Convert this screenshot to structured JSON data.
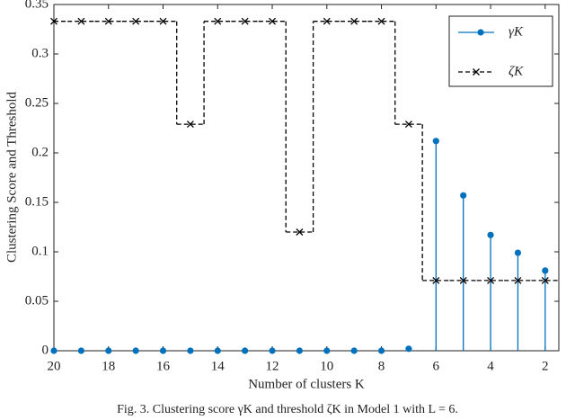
{
  "chart_data": {
    "type": "stem-step",
    "x_label": "Number of clusters K",
    "y_label": "Clustering Score and Threshold",
    "caption": "Fig. 3.   Clustering score γK and threshold ζK in Model 1 with L = 6.",
    "x": [
      20,
      19,
      18,
      17,
      16,
      15,
      14,
      13,
      12,
      11,
      10,
      9,
      8,
      7,
      6,
      5,
      4,
      3,
      2
    ],
    "xlim": [
      20,
      1.5
    ],
    "xticks": [
      20,
      18,
      16,
      14,
      12,
      10,
      8,
      6,
      4,
      2
    ],
    "ylim": [
      0,
      0.35
    ],
    "yticks": [
      0,
      0.05,
      0.1,
      0.15,
      0.2,
      0.25,
      0.3,
      0.35
    ],
    "legend": "upper right",
    "series": [
      {
        "name": "γK",
        "color": "#0072bd",
        "style": "stem",
        "values": [
          0,
          0,
          0,
          0,
          0,
          0,
          0,
          0,
          0,
          0,
          0,
          0,
          0,
          0.002,
          0.212,
          0.157,
          0.117,
          0.099,
          0.081
        ]
      },
      {
        "name": "ζK",
        "color": "#000000",
        "style": "step",
        "values": [
          0.333,
          0.333,
          0.333,
          0.333,
          0.333,
          0.229,
          0.333,
          0.333,
          0.333,
          0.12,
          0.333,
          0.333,
          0.333,
          0.229,
          0.071,
          0.071,
          0.071,
          0.071,
          0.071
        ]
      }
    ]
  }
}
